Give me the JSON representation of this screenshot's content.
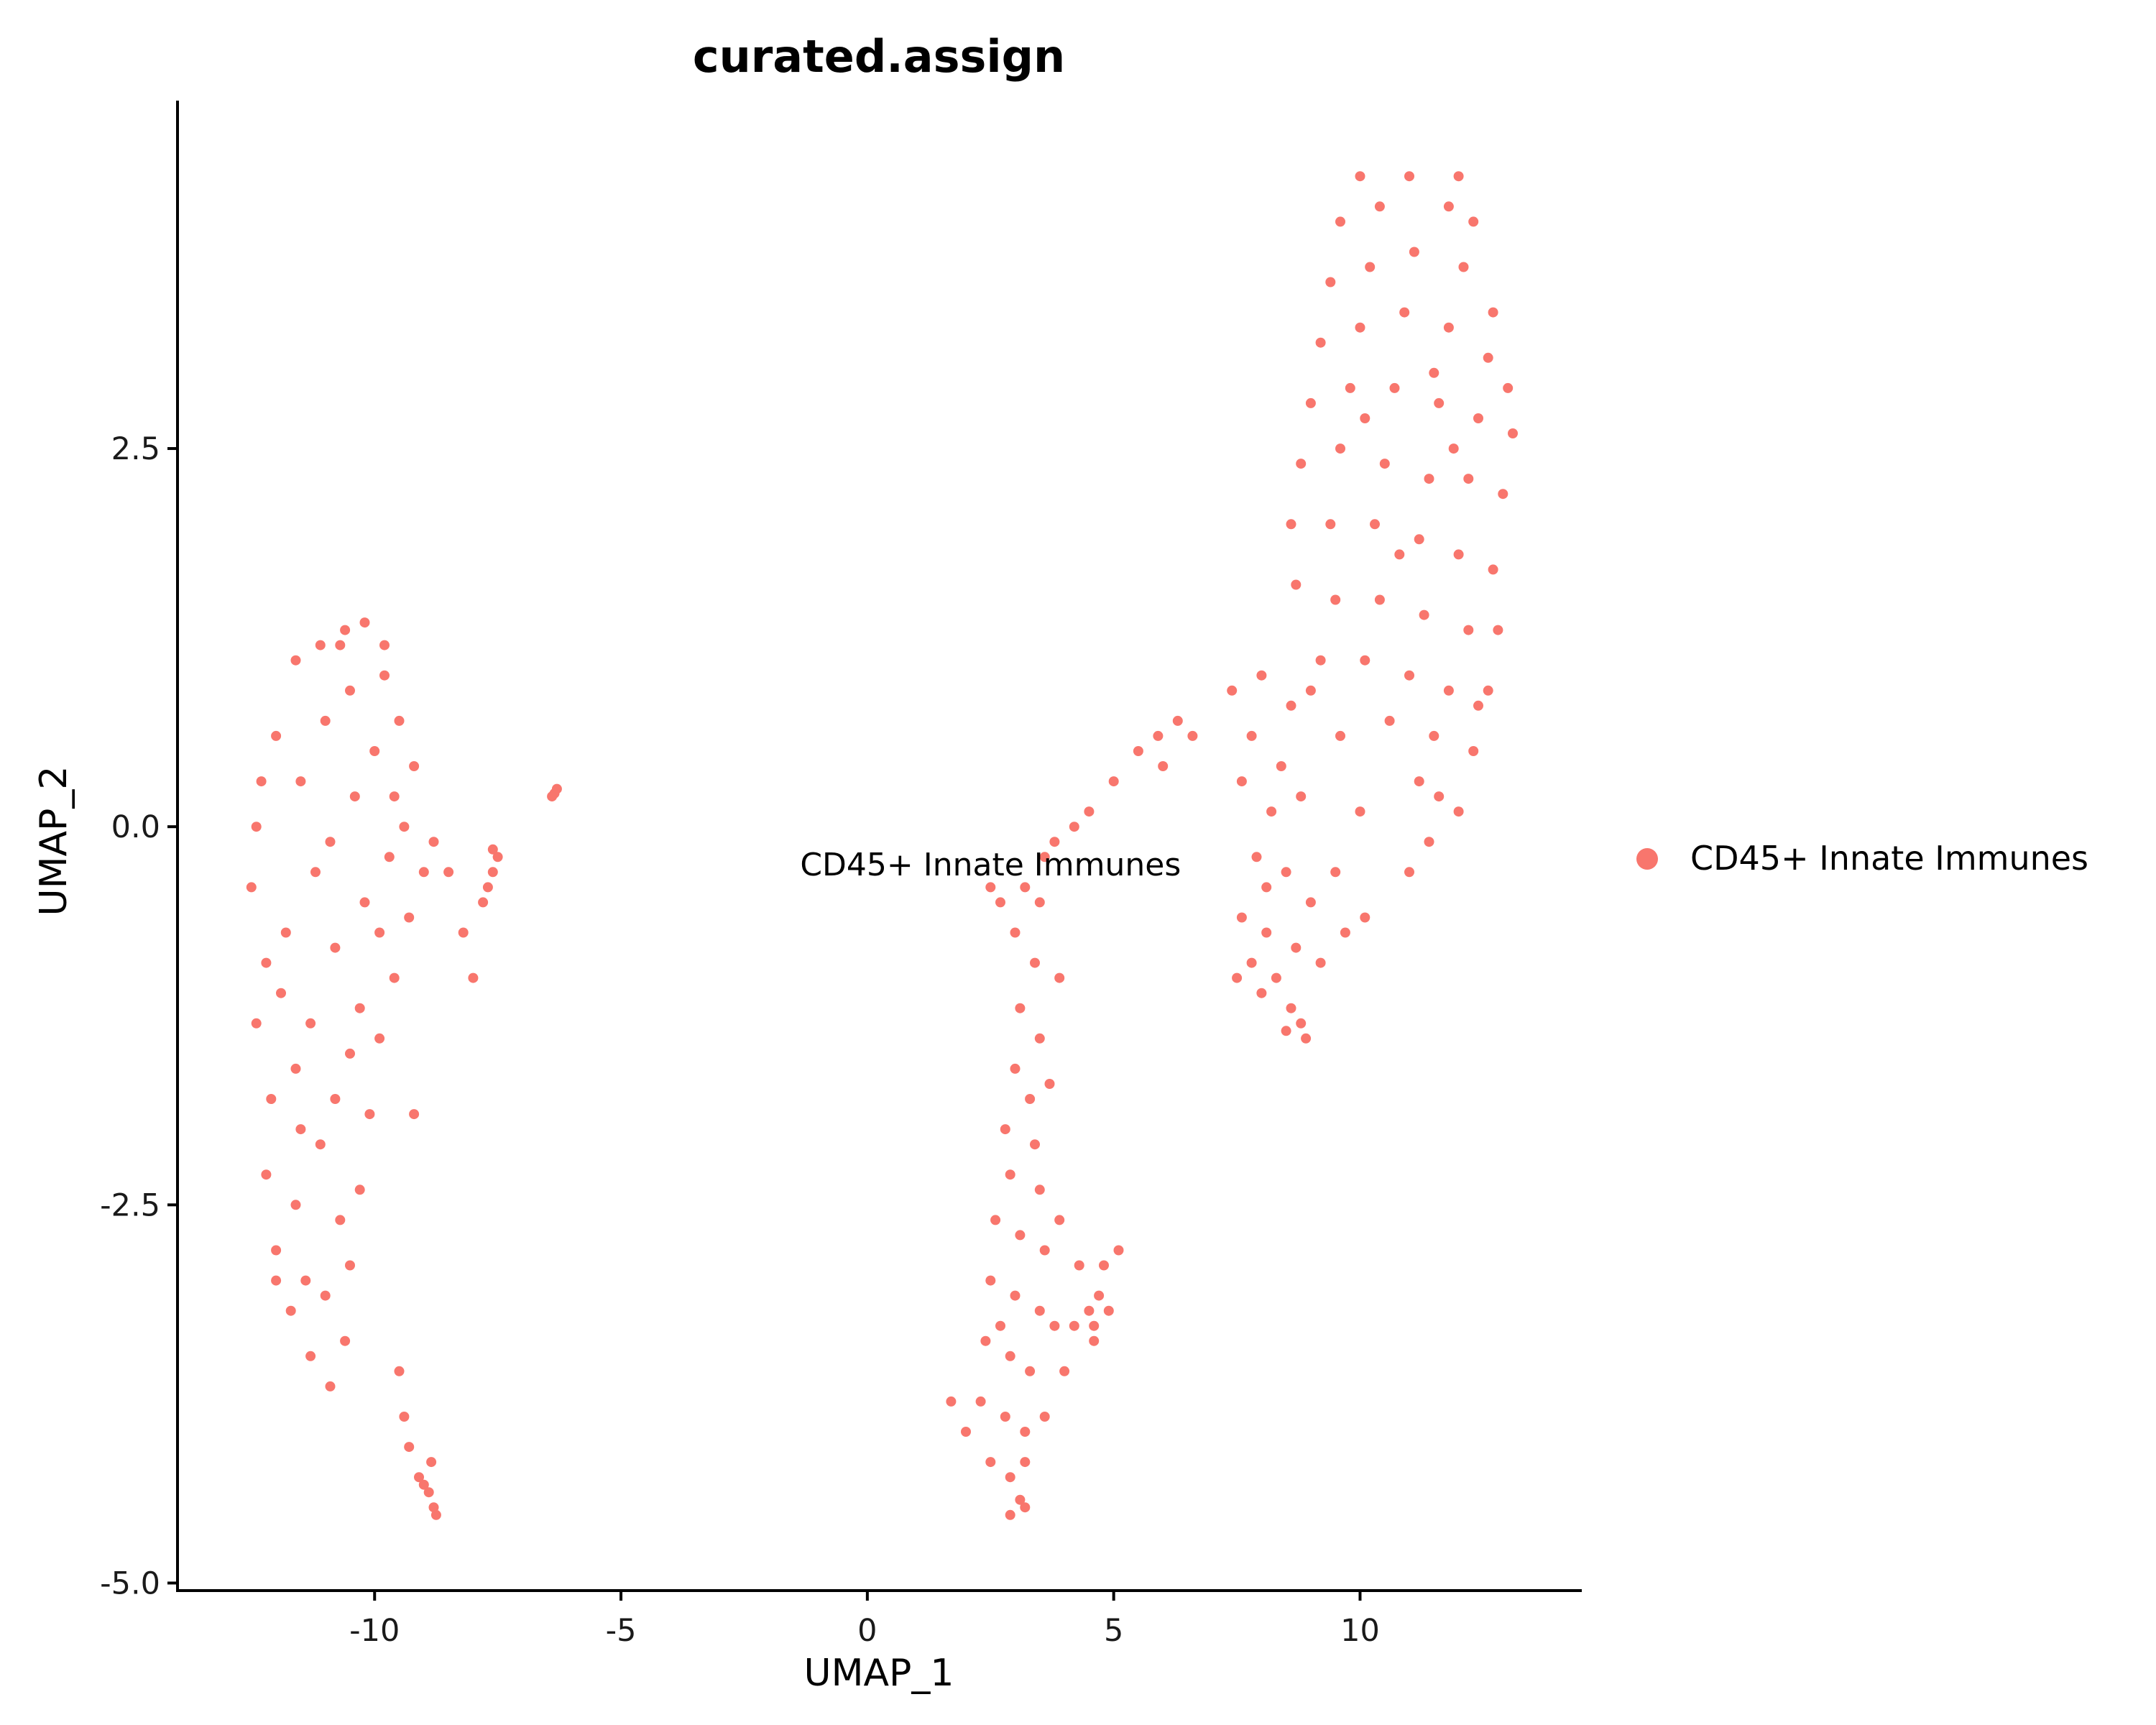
{
  "chart_data": {
    "type": "scatter",
    "title": "curated.assign",
    "xlabel": "UMAP_1",
    "ylabel": "UMAP_2",
    "xlim": [
      -14,
      14.5
    ],
    "ylim": [
      -5.05,
      4.8
    ],
    "xticks": [
      -10,
      -5,
      0,
      5,
      10
    ],
    "xtick_labels": [
      "-10",
      "-5",
      "0",
      "5",
      "10"
    ],
    "yticks": [
      2.5,
      0.0,
      -2.5,
      -5.0
    ],
    "ytick_labels": [
      "2.5",
      "0.0",
      "-2.5",
      "-5.0"
    ],
    "grid": false,
    "legend_position": "right",
    "series": [
      {
        "name": "CD45+ Innate Immunes",
        "color": "#F8766D",
        "cluster_label": "CD45+ Innate Immunes",
        "cluster_label_at": [
          2.5,
          -0.25
        ],
        "points": [
          [
            -12.4,
            0.0
          ],
          [
            -12.0,
            0.6
          ],
          [
            -11.6,
            1.1
          ],
          [
            -11.1,
            1.2
          ],
          [
            -10.6,
            1.3
          ],
          [
            -10.2,
            1.35
          ],
          [
            -9.8,
            1.0
          ],
          [
            -9.5,
            0.7
          ],
          [
            -9.2,
            0.4
          ],
          [
            -9.4,
            0.0
          ],
          [
            -12.5,
            -0.4
          ],
          [
            -12.2,
            -0.9
          ],
          [
            -12.4,
            -1.3
          ],
          [
            -12.1,
            -1.8
          ],
          [
            -12.2,
            -2.3
          ],
          [
            -12.0,
            -2.8
          ],
          [
            -11.7,
            -3.2
          ],
          [
            -11.3,
            -3.5
          ],
          [
            -10.9,
            -3.7
          ],
          [
            -10.6,
            -3.4
          ],
          [
            -10.5,
            -2.9
          ],
          [
            -10.3,
            -2.4
          ],
          [
            -10.1,
            -1.9
          ],
          [
            -9.9,
            -1.4
          ],
          [
            -9.6,
            -1.0
          ],
          [
            -9.3,
            -0.6
          ],
          [
            -9.0,
            -0.3
          ],
          [
            -8.8,
            -0.1
          ],
          [
            -8.5,
            -0.3
          ],
          [
            -8.2,
            -0.7
          ],
          [
            -8.0,
            -1.0
          ],
          [
            -11.5,
            0.3
          ],
          [
            -11.0,
            0.7
          ],
          [
            -10.5,
            0.9
          ],
          [
            -10.0,
            0.5
          ],
          [
            -11.2,
            -0.3
          ],
          [
            -10.8,
            -0.8
          ],
          [
            -10.3,
            -1.2
          ],
          [
            -11.6,
            -1.6
          ],
          [
            -11.1,
            -2.1
          ],
          [
            -10.7,
            -2.6
          ],
          [
            -11.4,
            -3.0
          ],
          [
            -10.2,
            -0.5
          ],
          [
            -9.7,
            -0.2
          ],
          [
            -11.8,
            -0.7
          ],
          [
            -12.3,
            0.3
          ],
          [
            -11.9,
            -1.1
          ],
          [
            -11.3,
            -1.3
          ],
          [
            -10.9,
            -0.1
          ],
          [
            -10.4,
            0.2
          ],
          [
            -9.6,
            0.2
          ],
          [
            -9.9,
            -0.7
          ],
          [
            -11.6,
            -2.5
          ],
          [
            -11.0,
            -3.1
          ],
          [
            -12.0,
            -3.0
          ],
          [
            -10.8,
            -1.8
          ],
          [
            -11.5,
            -2.0
          ],
          [
            -10.5,
            -1.5
          ],
          [
            -9.8,
            1.2
          ],
          [
            -10.7,
            1.2
          ],
          [
            -7.5,
            -0.2
          ],
          [
            -7.6,
            -0.3
          ],
          [
            -7.7,
            -0.4
          ],
          [
            -7.8,
            -0.5
          ],
          [
            -7.6,
            -0.15
          ],
          [
            -6.3,
            0.25
          ],
          [
            -6.35,
            0.22
          ],
          [
            -6.4,
            0.2
          ],
          [
            -9.2,
            -1.9
          ],
          [
            -9.5,
            -3.6
          ],
          [
            -9.4,
            -3.9
          ],
          [
            -9.3,
            -4.1
          ],
          [
            -9.1,
            -4.3
          ],
          [
            -8.9,
            -4.4
          ],
          [
            -8.8,
            -4.5
          ],
          [
            -8.75,
            -4.55
          ],
          [
            -9.0,
            -4.35
          ],
          [
            -8.85,
            -4.2
          ],
          [
            10.0,
            4.3
          ],
          [
            11.0,
            4.3
          ],
          [
            12.0,
            4.3
          ],
          [
            9.6,
            4.0
          ],
          [
            10.4,
            4.1
          ],
          [
            11.8,
            4.1
          ],
          [
            12.3,
            4.0
          ],
          [
            9.4,
            3.6
          ],
          [
            10.2,
            3.7
          ],
          [
            11.1,
            3.8
          ],
          [
            12.1,
            3.7
          ],
          [
            12.7,
            3.4
          ],
          [
            9.2,
            3.2
          ],
          [
            10.0,
            3.3
          ],
          [
            10.9,
            3.4
          ],
          [
            11.8,
            3.3
          ],
          [
            12.6,
            3.1
          ],
          [
            13.0,
            2.9
          ],
          [
            9.0,
            2.8
          ],
          [
            9.8,
            2.9
          ],
          [
            10.7,
            2.9
          ],
          [
            11.6,
            2.8
          ],
          [
            12.4,
            2.7
          ],
          [
            13.1,
            2.6
          ],
          [
            8.8,
            2.4
          ],
          [
            9.6,
            2.5
          ],
          [
            10.5,
            2.4
          ],
          [
            11.4,
            2.3
          ],
          [
            12.2,
            2.3
          ],
          [
            12.9,
            2.2
          ],
          [
            8.6,
            2.0
          ],
          [
            9.4,
            2.0
          ],
          [
            10.3,
            2.0
          ],
          [
            11.2,
            1.9
          ],
          [
            12.0,
            1.8
          ],
          [
            12.7,
            1.7
          ],
          [
            8.7,
            1.6
          ],
          [
            9.5,
            1.5
          ],
          [
            10.4,
            1.5
          ],
          [
            11.3,
            1.4
          ],
          [
            12.2,
            1.3
          ],
          [
            12.8,
            1.3
          ],
          [
            9.2,
            1.1
          ],
          [
            10.1,
            1.1
          ],
          [
            11.0,
            1.0
          ],
          [
            11.8,
            0.9
          ],
          [
            12.6,
            0.9
          ],
          [
            10.6,
            0.7
          ],
          [
            11.5,
            0.6
          ],
          [
            12.3,
            0.5
          ],
          [
            11.2,
            0.3
          ],
          [
            12.0,
            0.1
          ],
          [
            11.4,
            -0.1
          ],
          [
            11.0,
            -0.3
          ],
          [
            11.6,
            0.2
          ],
          [
            12.4,
            0.8
          ],
          [
            10.8,
            1.8
          ],
          [
            11.9,
            2.5
          ],
          [
            10.1,
            2.7
          ],
          [
            11.5,
            3.0
          ],
          [
            7.4,
            0.9
          ],
          [
            8.0,
            1.0
          ],
          [
            8.6,
            0.8
          ],
          [
            9.0,
            0.9
          ],
          [
            7.8,
            0.6
          ],
          [
            8.4,
            0.4
          ],
          [
            8.8,
            0.2
          ],
          [
            7.6,
            0.3
          ],
          [
            8.2,
            0.1
          ],
          [
            7.9,
            -0.2
          ],
          [
            8.5,
            -0.3
          ],
          [
            9.0,
            -0.5
          ],
          [
            7.6,
            -0.6
          ],
          [
            8.1,
            -0.7
          ],
          [
            8.7,
            -0.8
          ],
          [
            9.2,
            -0.9
          ],
          [
            9.7,
            -0.7
          ],
          [
            10.1,
            -0.6
          ],
          [
            7.5,
            -1.0
          ],
          [
            8.0,
            -1.1
          ],
          [
            8.6,
            -1.2
          ],
          [
            8.8,
            -1.3
          ],
          [
            8.5,
            -1.35
          ],
          [
            8.9,
            -1.4
          ],
          [
            8.3,
            -1.0
          ],
          [
            9.5,
            -0.3
          ],
          [
            10.0,
            0.1
          ],
          [
            9.6,
            0.6
          ],
          [
            8.1,
            -0.4
          ],
          [
            7.8,
            -0.9
          ],
          [
            5.5,
            0.5
          ],
          [
            5.9,
            0.6
          ],
          [
            6.3,
            0.7
          ],
          [
            6.6,
            0.6
          ],
          [
            6.0,
            0.4
          ],
          [
            5.0,
            0.3
          ],
          [
            4.5,
            0.1
          ],
          [
            4.2,
            0.0
          ],
          [
            3.8,
            -0.1
          ],
          [
            3.6,
            -0.2
          ],
          [
            2.5,
            -0.4
          ],
          [
            2.7,
            -0.5
          ],
          [
            3.2,
            -0.4
          ],
          [
            3.5,
            -0.5
          ],
          [
            3.0,
            -0.7
          ],
          [
            3.4,
            -0.9
          ],
          [
            3.1,
            -1.2
          ],
          [
            3.5,
            -1.4
          ],
          [
            3.0,
            -1.6
          ],
          [
            3.3,
            -1.8
          ],
          [
            2.8,
            -2.0
          ],
          [
            3.4,
            -2.1
          ],
          [
            2.9,
            -2.3
          ],
          [
            3.5,
            -2.4
          ],
          [
            2.6,
            -2.6
          ],
          [
            3.1,
            -2.7
          ],
          [
            3.6,
            -2.8
          ],
          [
            2.5,
            -3.0
          ],
          [
            3.0,
            -3.1
          ],
          [
            3.5,
            -3.2
          ],
          [
            2.4,
            -3.4
          ],
          [
            2.9,
            -3.5
          ],
          [
            3.3,
            -3.6
          ],
          [
            2.3,
            -3.8
          ],
          [
            2.8,
            -3.9
          ],
          [
            3.2,
            -4.0
          ],
          [
            2.5,
            -4.2
          ],
          [
            2.9,
            -4.3
          ],
          [
            3.1,
            -4.45
          ],
          [
            2.9,
            -4.55
          ],
          [
            3.2,
            -4.5
          ],
          [
            1.7,
            -3.8
          ],
          [
            2.0,
            -4.0
          ],
          [
            3.6,
            -3.9
          ],
          [
            4.0,
            -3.6
          ],
          [
            3.8,
            -3.3
          ],
          [
            4.2,
            -3.3
          ],
          [
            4.5,
            -3.2
          ],
          [
            4.6,
            -3.3
          ],
          [
            4.7,
            -3.1
          ],
          [
            4.8,
            -2.9
          ],
          [
            5.1,
            -2.8
          ],
          [
            4.3,
            -2.9
          ],
          [
            4.6,
            -3.4
          ],
          [
            4.9,
            -3.2
          ],
          [
            3.9,
            -2.6
          ],
          [
            3.7,
            -1.7
          ],
          [
            3.9,
            -1.0
          ],
          [
            2.7,
            -3.3
          ],
          [
            3.2,
            -4.2
          ]
        ]
      }
    ]
  }
}
